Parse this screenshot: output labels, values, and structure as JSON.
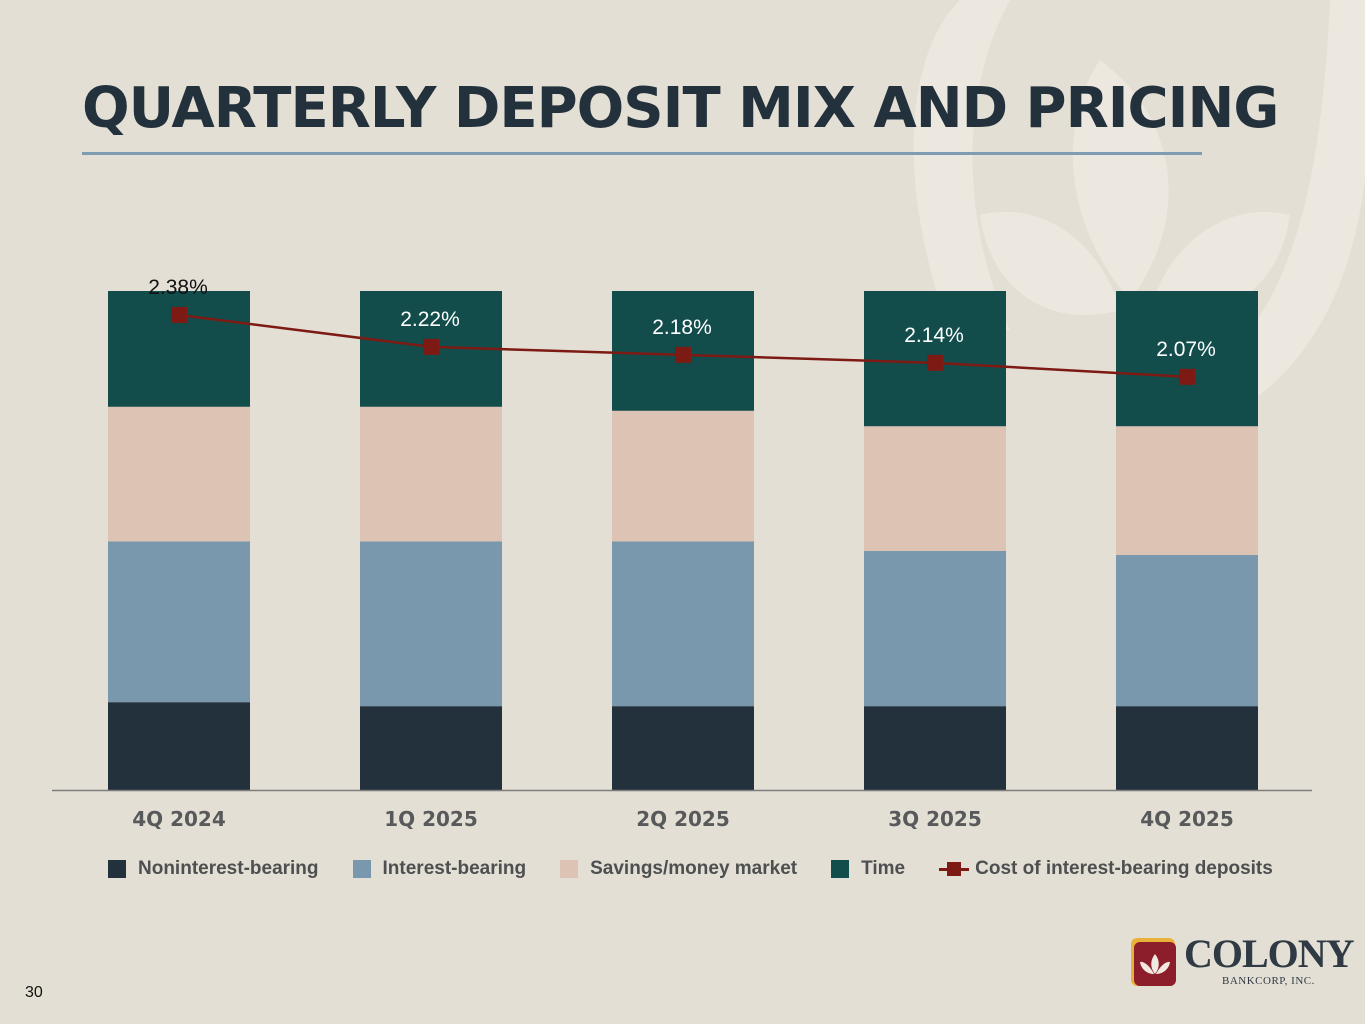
{
  "page": {
    "title": "QUARTERLY DEPOSIT MIX AND PRICING",
    "page_number": "30"
  },
  "colors": {
    "background": "#e4dfd4",
    "noninterest": "#23313d",
    "interest": "#7a98ad",
    "savings": "#dcc3b4",
    "time": "#124d4c",
    "cost_line": "#7d1a13",
    "title": "#23313d",
    "title_rule": "#7e9cb2"
  },
  "chart_data": {
    "type": "bar",
    "stacked": true,
    "categories": [
      "4Q 2024",
      "1Q 2025",
      "2Q 2025",
      "3Q 2025",
      "4Q 2025"
    ],
    "ylim": [
      0,
      100
    ],
    "y_unit": "% of total deposits (estimated)",
    "series": [
      {
        "name": "Noninterest-bearing",
        "color_key": "noninterest",
        "values": [
          17.6,
          16.8,
          16.8,
          16.8,
          16.8
        ]
      },
      {
        "name": "Interest-bearing",
        "color_key": "interest",
        "values": [
          32.2,
          33.0,
          33.0,
          31.1,
          30.3
        ]
      },
      {
        "name": "Savings/money market",
        "color_key": "savings",
        "values": [
          27.0,
          27.0,
          26.2,
          25.0,
          25.8
        ]
      },
      {
        "name": "Time",
        "color_key": "time",
        "values": [
          23.2,
          23.2,
          24.0,
          27.1,
          27.1
        ]
      }
    ],
    "line_series": {
      "name": "Cost of interest-bearing deposits",
      "color_key": "cost_line",
      "values": [
        2.38,
        2.22,
        2.18,
        2.14,
        2.07
      ],
      "labels": [
        "2.38%",
        "2.22%",
        "2.18%",
        "2.14%",
        "2.07%"
      ],
      "ylim": [
        0.0,
        2.5
      ]
    },
    "legend": [
      {
        "label": "Noninterest-bearing",
        "color_key": "noninterest",
        "kind": "box"
      },
      {
        "label": "Interest-bearing",
        "color_key": "interest",
        "kind": "box"
      },
      {
        "label": "Savings/money market",
        "color_key": "savings",
        "kind": "box"
      },
      {
        "label": "Time",
        "color_key": "time",
        "kind": "box"
      },
      {
        "label": "Cost of interest-bearing deposits",
        "color_key": "cost_line",
        "kind": "line"
      }
    ],
    "legend_position": "bottom",
    "grid": false
  },
  "logo": {
    "name": "COLONY",
    "subtitle": "BANKCORP, INC."
  }
}
